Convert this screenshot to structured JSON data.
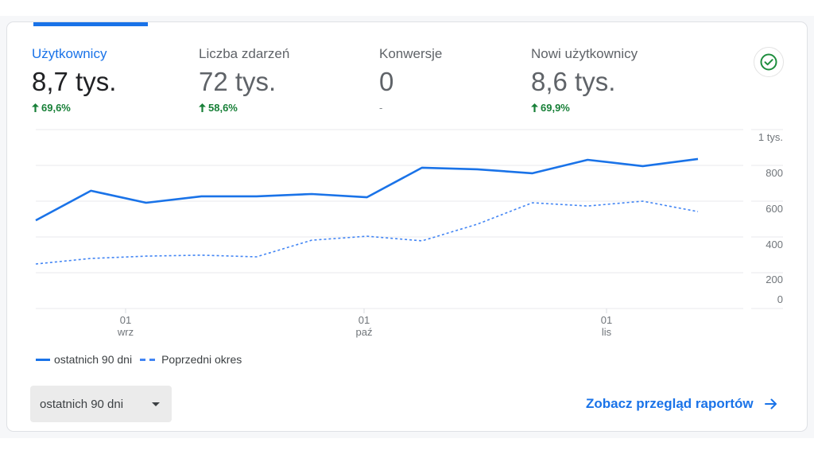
{
  "metrics": [
    {
      "label": "Użytkownicy",
      "value": "8,7 tys.",
      "delta": "69,6%",
      "trend": "up",
      "active": true
    },
    {
      "label": "Liczba zdarzeń",
      "value": "72 tys.",
      "delta": "58,6%",
      "trend": "up",
      "active": false
    },
    {
      "label": "Konwersje",
      "value": "0",
      "delta": "-",
      "trend": "none",
      "active": false
    },
    {
      "label": "Nowi użytkownicy",
      "value": "8,6 tys.",
      "delta": "69,9%",
      "trend": "up",
      "active": false
    }
  ],
  "status_icon": "check-circle-icon",
  "legend": {
    "current": "ostatnich 90 dni",
    "previous": "Poprzedni okres"
  },
  "range_select": {
    "selected": "ostatnich 90 dni"
  },
  "report_link": {
    "label": "Zobacz przegląd raportów",
    "icon": "arrow-right-icon"
  },
  "colors": {
    "accent": "#1a73e8",
    "positive": "#188038",
    "status_check": "#1e8e3e"
  },
  "chart_data": {
    "type": "line",
    "title": "",
    "xlabel": "",
    "ylabel": "",
    "ylim": [
      0,
      1000
    ],
    "grid": true,
    "legend_position": "bottom-left",
    "y_ticks": [
      "1 tys.",
      "800",
      "600",
      "400",
      "200",
      "0"
    ],
    "x_ticks": [
      {
        "day": "01",
        "month": "wrz"
      },
      {
        "day": "01",
        "month": "paź"
      },
      {
        "day": "01",
        "month": "lis"
      }
    ],
    "x": [
      1,
      2,
      3,
      4,
      5,
      6,
      7,
      8,
      9,
      10,
      11,
      12,
      13
    ],
    "series": [
      {
        "name": "ostatnich 90 dni",
        "style": "solid",
        "values": [
          493,
          658,
          591,
          627,
          627,
          640,
          622,
          787,
          778,
          756,
          831,
          796,
          836
        ]
      },
      {
        "name": "Poprzedni okres",
        "style": "dashed",
        "values": [
          249,
          280,
          293,
          298,
          289,
          382,
          404,
          378,
          471,
          591,
          573,
          600,
          542
        ]
      }
    ]
  }
}
